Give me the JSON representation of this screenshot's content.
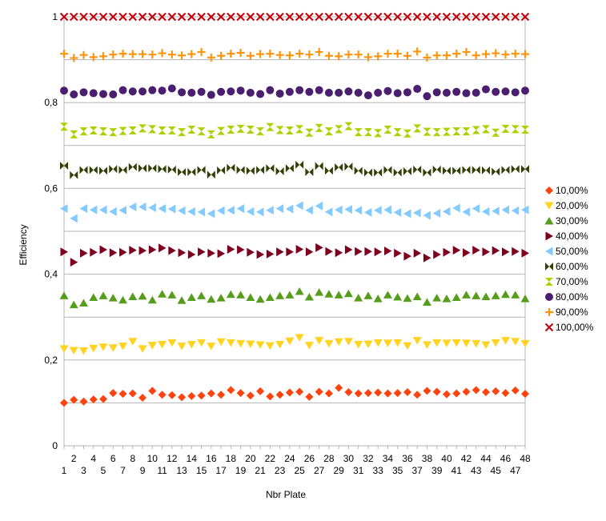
{
  "chart_data": {
    "type": "scatter",
    "xlabel": "Nbr Plate",
    "ylabel": "Efficiency",
    "xlim": [
      1,
      48
    ],
    "ylim": [
      0,
      1
    ],
    "y_ticks": [
      "0",
      "0,2",
      "0,4",
      "0,6",
      "0,8",
      "1"
    ],
    "y_tick_values": [
      0,
      0.2,
      0.4,
      0.6,
      0.8,
      1
    ],
    "x_ticks_odd": [
      "1",
      "3",
      "5",
      "7",
      "9",
      "11",
      "13",
      "15",
      "17",
      "19",
      "21",
      "23",
      "25",
      "27",
      "29",
      "31",
      "33",
      "35",
      "37",
      "39",
      "41",
      "43",
      "45",
      "47"
    ],
    "x_ticks_even": [
      "2",
      "4",
      "6",
      "8",
      "10",
      "12",
      "14",
      "16",
      "18",
      "20",
      "22",
      "24",
      "26",
      "28",
      "30",
      "32",
      "34",
      "36",
      "38",
      "40",
      "42",
      "44",
      "46",
      "48"
    ],
    "grid": "horizontal",
    "legend_position": "right",
    "series": [
      {
        "name": "10,00%",
        "color": "#ff420e",
        "marker": "diamond",
        "values": [
          0.1,
          0.107,
          0.103,
          0.108,
          0.109,
          0.123,
          0.121,
          0.122,
          0.112,
          0.128,
          0.119,
          0.118,
          0.113,
          0.116,
          0.117,
          0.122,
          0.119,
          0.13,
          0.123,
          0.117,
          0.127,
          0.115,
          0.119,
          0.124,
          0.126,
          0.114,
          0.126,
          0.122,
          0.135,
          0.125,
          0.122,
          0.123,
          0.124,
          0.122,
          0.123,
          0.125,
          0.119,
          0.128,
          0.126,
          0.12,
          0.122,
          0.126,
          0.13,
          0.125,
          0.127,
          0.123,
          0.129,
          0.121
        ]
      },
      {
        "name": "20,00%",
        "color": "#ffd320",
        "marker": "triangle-down",
        "values": [
          0.226,
          0.222,
          0.221,
          0.227,
          0.23,
          0.228,
          0.232,
          0.243,
          0.226,
          0.234,
          0.236,
          0.24,
          0.232,
          0.236,
          0.24,
          0.232,
          0.242,
          0.24,
          0.238,
          0.237,
          0.235,
          0.233,
          0.236,
          0.244,
          0.252,
          0.234,
          0.245,
          0.238,
          0.242,
          0.243,
          0.236,
          0.237,
          0.24,
          0.239,
          0.24,
          0.233,
          0.245,
          0.235,
          0.24,
          0.239,
          0.24,
          0.239,
          0.238,
          0.235,
          0.24,
          0.245,
          0.243,
          0.238
        ]
      },
      {
        "name": "30,00%",
        "color": "#579d1c",
        "marker": "triangle-up",
        "values": [
          0.35,
          0.329,
          0.333,
          0.346,
          0.35,
          0.345,
          0.34,
          0.348,
          0.349,
          0.34,
          0.354,
          0.352,
          0.339,
          0.346,
          0.35,
          0.342,
          0.345,
          0.353,
          0.352,
          0.346,
          0.342,
          0.346,
          0.35,
          0.352,
          0.36,
          0.347,
          0.358,
          0.354,
          0.352,
          0.355,
          0.345,
          0.35,
          0.343,
          0.352,
          0.347,
          0.344,
          0.348,
          0.335,
          0.345,
          0.343,
          0.346,
          0.352,
          0.35,
          0.348,
          0.35,
          0.353,
          0.352,
          0.343
        ]
      },
      {
        "name": "40,00%",
        "color": "#7e0021",
        "marker": "triangle-right",
        "values": [
          0.452,
          0.428,
          0.449,
          0.451,
          0.457,
          0.45,
          0.451,
          0.456,
          0.455,
          0.457,
          0.461,
          0.455,
          0.45,
          0.446,
          0.452,
          0.449,
          0.448,
          0.458,
          0.457,
          0.451,
          0.446,
          0.447,
          0.452,
          0.452,
          0.458,
          0.452,
          0.462,
          0.453,
          0.45,
          0.457,
          0.453,
          0.453,
          0.452,
          0.454,
          0.449,
          0.442,
          0.449,
          0.438,
          0.446,
          0.451,
          0.456,
          0.45,
          0.456,
          0.452,
          0.455,
          0.452,
          0.453,
          0.449
        ]
      },
      {
        "name": "50,00%",
        "color": "#83caff",
        "marker": "triangle-left",
        "values": [
          0.553,
          0.53,
          0.553,
          0.55,
          0.55,
          0.546,
          0.549,
          0.557,
          0.557,
          0.555,
          0.553,
          0.552,
          0.548,
          0.546,
          0.545,
          0.541,
          0.548,
          0.549,
          0.553,
          0.546,
          0.545,
          0.549,
          0.553,
          0.552,
          0.56,
          0.549,
          0.559,
          0.545,
          0.55,
          0.551,
          0.549,
          0.544,
          0.549,
          0.55,
          0.544,
          0.541,
          0.543,
          0.537,
          0.542,
          0.546,
          0.554,
          0.545,
          0.553,
          0.546,
          0.547,
          0.55,
          0.548,
          0.55
        ]
      },
      {
        "name": "60,00%",
        "color": "#314004",
        "marker": "bowtie",
        "values": [
          0.653,
          0.631,
          0.643,
          0.643,
          0.641,
          0.645,
          0.643,
          0.65,
          0.647,
          0.647,
          0.645,
          0.644,
          0.638,
          0.638,
          0.643,
          0.632,
          0.642,
          0.648,
          0.643,
          0.641,
          0.643,
          0.647,
          0.64,
          0.647,
          0.655,
          0.638,
          0.652,
          0.641,
          0.649,
          0.651,
          0.641,
          0.637,
          0.637,
          0.643,
          0.637,
          0.64,
          0.644,
          0.637,
          0.644,
          0.641,
          0.641,
          0.643,
          0.643,
          0.642,
          0.639,
          0.643,
          0.645,
          0.645
        ]
      },
      {
        "name": "70,00%",
        "color": "#aecf00",
        "marker": "hourglass",
        "values": [
          0.744,
          0.726,
          0.733,
          0.735,
          0.733,
          0.731,
          0.734,
          0.735,
          0.74,
          0.738,
          0.735,
          0.735,
          0.731,
          0.737,
          0.733,
          0.726,
          0.734,
          0.737,
          0.739,
          0.737,
          0.733,
          0.743,
          0.736,
          0.735,
          0.738,
          0.73,
          0.741,
          0.733,
          0.738,
          0.745,
          0.731,
          0.731,
          0.729,
          0.737,
          0.731,
          0.728,
          0.74,
          0.732,
          0.731,
          0.732,
          0.733,
          0.733,
          0.736,
          0.738,
          0.73,
          0.739,
          0.738,
          0.737
        ]
      },
      {
        "name": "80,00%",
        "color": "#4b1f6f",
        "marker": "circle",
        "values": [
          0.828,
          0.819,
          0.824,
          0.822,
          0.82,
          0.819,
          0.829,
          0.826,
          0.826,
          0.829,
          0.828,
          0.833,
          0.824,
          0.823,
          0.825,
          0.818,
          0.825,
          0.826,
          0.828,
          0.823,
          0.82,
          0.829,
          0.821,
          0.825,
          0.829,
          0.825,
          0.829,
          0.823,
          0.823,
          0.826,
          0.823,
          0.817,
          0.823,
          0.827,
          0.822,
          0.824,
          0.832,
          0.815,
          0.824,
          0.823,
          0.825,
          0.822,
          0.823,
          0.831,
          0.825,
          0.826,
          0.824,
          0.828
        ]
      },
      {
        "name": "90,00%",
        "color": "#ff950e",
        "marker": "plus",
        "values": [
          0.914,
          0.904,
          0.911,
          0.906,
          0.908,
          0.912,
          0.914,
          0.913,
          0.913,
          0.912,
          0.915,
          0.912,
          0.91,
          0.913,
          0.918,
          0.905,
          0.909,
          0.914,
          0.916,
          0.909,
          0.913,
          0.914,
          0.911,
          0.91,
          0.914,
          0.912,
          0.918,
          0.909,
          0.908,
          0.912,
          0.912,
          0.906,
          0.908,
          0.914,
          0.914,
          0.909,
          0.919,
          0.905,
          0.91,
          0.91,
          0.914,
          0.918,
          0.91,
          0.913,
          0.915,
          0.912,
          0.914,
          0.913
        ]
      },
      {
        "name": "100,00%",
        "color": "#c5000b",
        "marker": "x",
        "values": [
          1,
          1,
          1,
          1,
          1,
          1,
          1,
          1,
          1,
          1,
          1,
          1,
          1,
          1,
          1,
          1,
          1,
          1,
          1,
          1,
          1,
          1,
          1,
          1,
          1,
          1,
          1,
          1,
          1,
          1,
          1,
          1,
          1,
          1,
          1,
          1,
          1,
          1,
          1,
          1,
          1,
          1,
          1,
          1,
          1,
          1,
          1,
          1
        ]
      }
    ]
  }
}
